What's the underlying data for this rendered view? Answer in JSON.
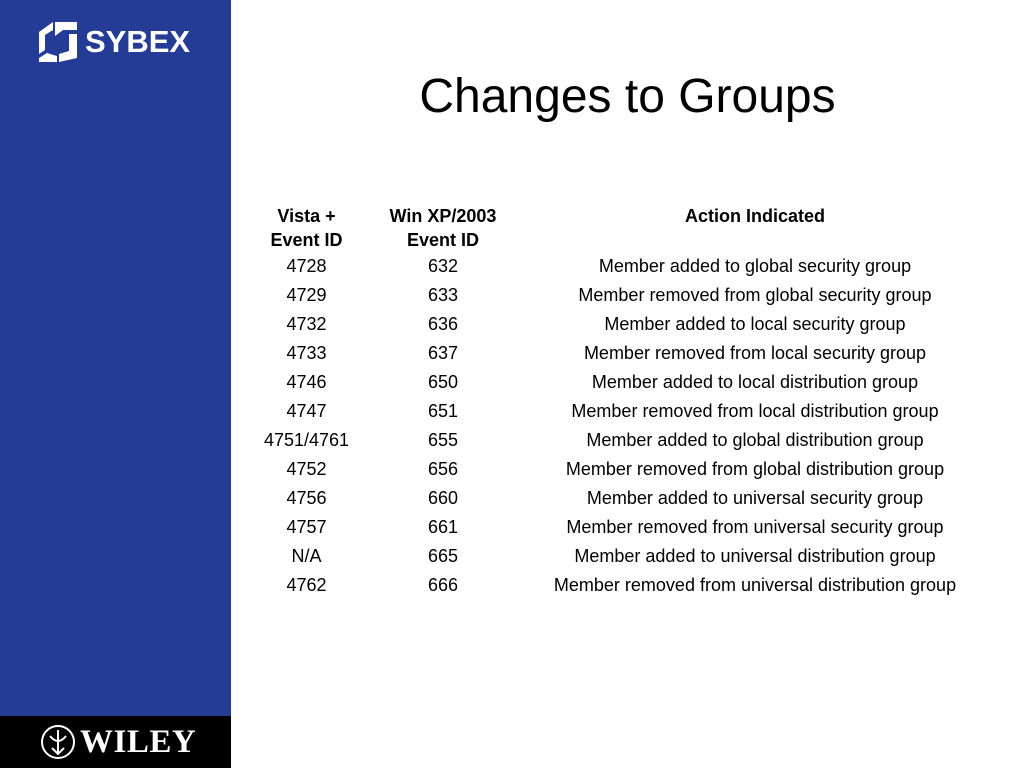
{
  "brand": {
    "publisher_logo": "SYBEX",
    "parent_logo": "WILEY",
    "sidebar_color": "#253c96"
  },
  "slide": {
    "title": "Changes to Groups"
  },
  "table": {
    "headers": [
      "Vista + Event ID",
      "Win XP/2003 Event ID",
      "Action Indicated"
    ],
    "header_lines": [
      [
        "Vista +",
        "Event ID"
      ],
      [
        "Win XP/2003",
        "Event ID"
      ],
      [
        "Action Indicated",
        ""
      ]
    ],
    "rows": [
      [
        "4728",
        "632",
        "Member added to global security group"
      ],
      [
        "4729",
        "633",
        "Member removed from global security group"
      ],
      [
        "4732",
        "636",
        "Member added to local security group"
      ],
      [
        "4733",
        "637",
        "Member removed from local security group"
      ],
      [
        "4746",
        "650",
        "Member added to local distribution group"
      ],
      [
        "4747",
        "651",
        "Member removed from local distribution group"
      ],
      [
        "4751/4761",
        "655",
        "Member added to global distribution group"
      ],
      [
        "4752",
        "656",
        "Member removed from global distribution group"
      ],
      [
        "4756",
        "660",
        "Member added to universal security group"
      ],
      [
        "4757",
        "661",
        "Member removed from universal security group"
      ],
      [
        "N/A",
        "665",
        "Member added to universal distribution group"
      ],
      [
        "4762",
        "666",
        "Member removed from universal distribution group"
      ]
    ]
  }
}
